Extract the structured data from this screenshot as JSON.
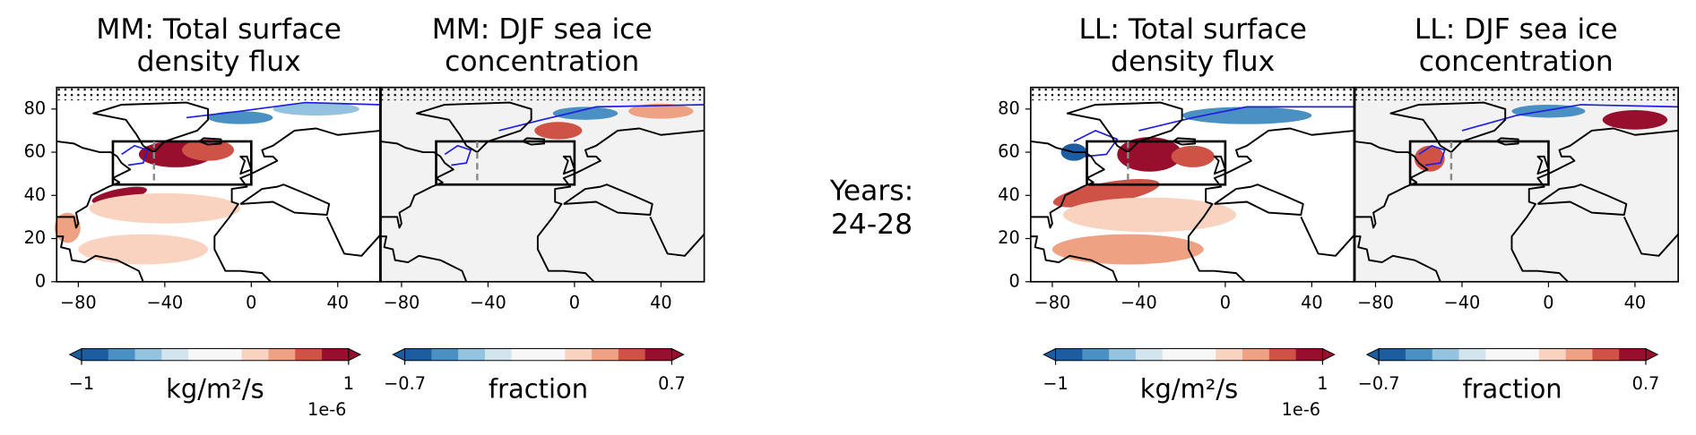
{
  "panels": [
    {
      "title_lines": [
        "MM: Total surface",
        "density flux"
      ],
      "xlim": [
        -90,
        60
      ],
      "ylim": [
        0,
        90
      ],
      "xticks": [
        {
          "value": -80,
          "label": "−80"
        },
        {
          "value": -40,
          "label": "−40"
        },
        0,
        40
      ],
      "yticks": [
        0,
        20,
        40,
        60,
        80
      ],
      "colorbar": {
        "label": "kg/m²/s",
        "lim": [
          -1,
          1
        ],
        "ticks": [
          {
            "value": -1,
            "label": "−1"
          },
          1
        ],
        "offset_text": "1e-6",
        "colors": [
          "#1d5c9e",
          "#4b90c3",
          "#93c3de",
          "#d2e5ef",
          "#f7f7f7",
          "#f7f7f7",
          "#f9d3bf",
          "#eea283",
          "#cf5246",
          "#970f2c"
        ]
      }
    },
    {
      "title_lines": [
        "MM: DJF sea ice",
        "concentration"
      ],
      "xlim": [
        -90,
        60
      ],
      "ylim": [
        0,
        90
      ],
      "xticks": [
        {
          "value": -80,
          "label": "−80"
        },
        {
          "value": -40,
          "label": "−40"
        },
        0,
        40
      ],
      "colorbar": {
        "label": "fraction",
        "lim": [
          -0.7,
          0.7
        ],
        "ticks": [
          {
            "value": -0.7,
            "label": "−0.7"
          },
          0.7
        ],
        "colors": [
          "#1d5c9e",
          "#4b90c3",
          "#93c3de",
          "#d2e5ef",
          "#f7f7f7",
          "#f7f7f7",
          "#f9d3bf",
          "#eea283",
          "#cf5246",
          "#970f2c"
        ]
      }
    },
    {
      "title_lines": [
        "LL: Total surface",
        "density flux"
      ],
      "xlim": [
        -90,
        60
      ],
      "ylim": [
        0,
        90
      ],
      "xticks": [
        {
          "value": -80,
          "label": "−80"
        },
        {
          "value": -40,
          "label": "−40"
        },
        0,
        40
      ],
      "yticks": [
        0,
        20,
        40,
        60,
        80
      ],
      "colorbar": {
        "label": "kg/m²/s",
        "lim": [
          -1,
          1
        ],
        "ticks": [
          {
            "value": -1,
            "label": "−1"
          },
          1
        ],
        "offset_text": "1e-6",
        "colors": [
          "#1d5c9e",
          "#4b90c3",
          "#93c3de",
          "#d2e5ef",
          "#f7f7f7",
          "#f7f7f7",
          "#f9d3bf",
          "#eea283",
          "#cf5246",
          "#970f2c"
        ]
      }
    },
    {
      "title_lines": [
        "LL: DJF sea ice",
        "concentration"
      ],
      "xlim": [
        -90,
        60
      ],
      "ylim": [
        0,
        90
      ],
      "xticks": [
        {
          "value": -80,
          "label": "−80"
        },
        {
          "value": -40,
          "label": "−40"
        },
        0,
        40
      ],
      "colorbar": {
        "label": "fraction",
        "lim": [
          -0.7,
          0.7
        ],
        "ticks": [
          {
            "value": -0.7,
            "label": "−0.7"
          },
          0.7
        ],
        "colors": [
          "#1d5c9e",
          "#4b90c3",
          "#93c3de",
          "#d2e5ef",
          "#f7f7f7",
          "#f7f7f7",
          "#f9d3bf",
          "#eea283",
          "#cf5246",
          "#970f2c"
        ]
      }
    }
  ],
  "center_label": [
    "Years:",
    "24-28"
  ]
}
